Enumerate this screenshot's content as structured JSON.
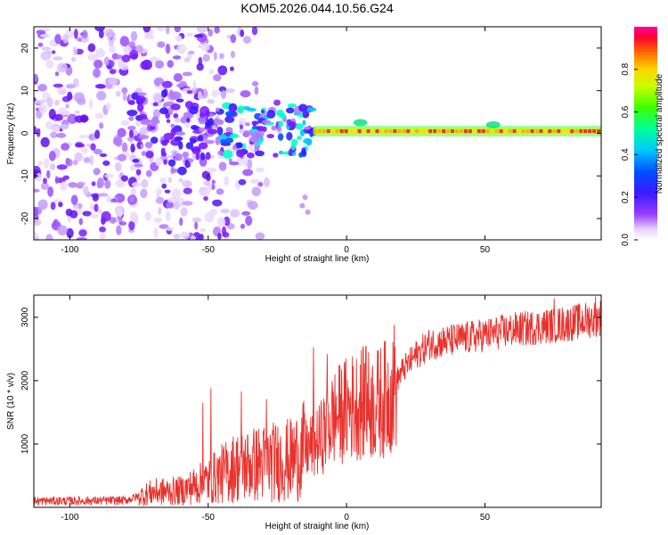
{
  "figure_title": "KOM5.2026.044.10.56.G24",
  "chart_data": [
    {
      "type": "heatmap",
      "title": "",
      "xlabel": "Height of straight line (km)",
      "ylabel": "Frequency (Hz)",
      "xlim": [
        -113,
        92
      ],
      "ylim": [
        -25,
        25
      ],
      "xticks": [
        -100,
        -50,
        0,
        50
      ],
      "xtick_labels": [
        "-100",
        "-50",
        "0",
        "50"
      ],
      "yticks": [
        -20,
        -10,
        0,
        10,
        20
      ],
      "ytick_labels": [
        "-20",
        "-10",
        "0",
        "10",
        "20"
      ],
      "colorbar": {
        "label": "Normalized spectral amplitude",
        "range": [
          0,
          1
        ],
        "ticks": [
          0.0,
          0.2,
          0.4,
          0.6,
          0.8
        ],
        "tick_labels": [
          "0.0",
          "0.2",
          "0.4",
          "0.6",
          "0.8"
        ]
      },
      "description_of_data": {
        "signal_band_center_hz": 0.5,
        "noise_region_km": [
          -113,
          -25
        ],
        "coherent_signal_start_km": -55,
        "strong_signal_start_km": -12
      }
    },
    {
      "type": "line",
      "title": "",
      "xlabel": "Height of straight line (km)",
      "ylabel": "SNR (10 * v/v)",
      "xlim": [
        -113,
        92
      ],
      "ylim": [
        0,
        3350
      ],
      "xticks": [
        -100,
        -50,
        0,
        50
      ],
      "xtick_labels": [
        "-100",
        "-50",
        "0",
        "50"
      ],
      "yticks": [
        1000,
        2000,
        3000
      ],
      "ytick_labels": [
        "1000",
        "2000",
        "3000"
      ],
      "color": "#e8322e",
      "trend_points": [
        {
          "x": -113,
          "y": 100
        },
        {
          "x": -90,
          "y": 105
        },
        {
          "x": -80,
          "y": 110
        },
        {
          "x": -70,
          "y": 240
        },
        {
          "x": -60,
          "y": 260
        },
        {
          "x": -50,
          "y": 420
        },
        {
          "x": -40,
          "y": 640
        },
        {
          "x": -30,
          "y": 700
        },
        {
          "x": -20,
          "y": 750
        },
        {
          "x": -10,
          "y": 1050
        },
        {
          "x": -5,
          "y": 1400
        },
        {
          "x": 0,
          "y": 1550
        },
        {
          "x": 5,
          "y": 1650
        },
        {
          "x": 10,
          "y": 1600
        },
        {
          "x": 15,
          "y": 1750
        },
        {
          "x": 20,
          "y": 2150
        },
        {
          "x": 25,
          "y": 2400
        },
        {
          "x": 30,
          "y": 2580
        },
        {
          "x": 40,
          "y": 2650
        },
        {
          "x": 50,
          "y": 2720
        },
        {
          "x": 60,
          "y": 2800
        },
        {
          "x": 70,
          "y": 2850
        },
        {
          "x": 80,
          "y": 2900
        },
        {
          "x": 92,
          "y": 3000
        }
      ],
      "spikes": [
        {
          "x": -52,
          "y": 1650
        },
        {
          "x": -49,
          "y": 1880
        },
        {
          "x": -38,
          "y": 1830
        },
        {
          "x": -29,
          "y": 1710
        },
        {
          "x": -12,
          "y": 2530
        },
        {
          "x": -7,
          "y": 2420
        },
        {
          "x": 7,
          "y": 2540
        },
        {
          "x": 75,
          "y": 3300
        },
        {
          "x": 90,
          "y": 3330
        }
      ]
    }
  ]
}
